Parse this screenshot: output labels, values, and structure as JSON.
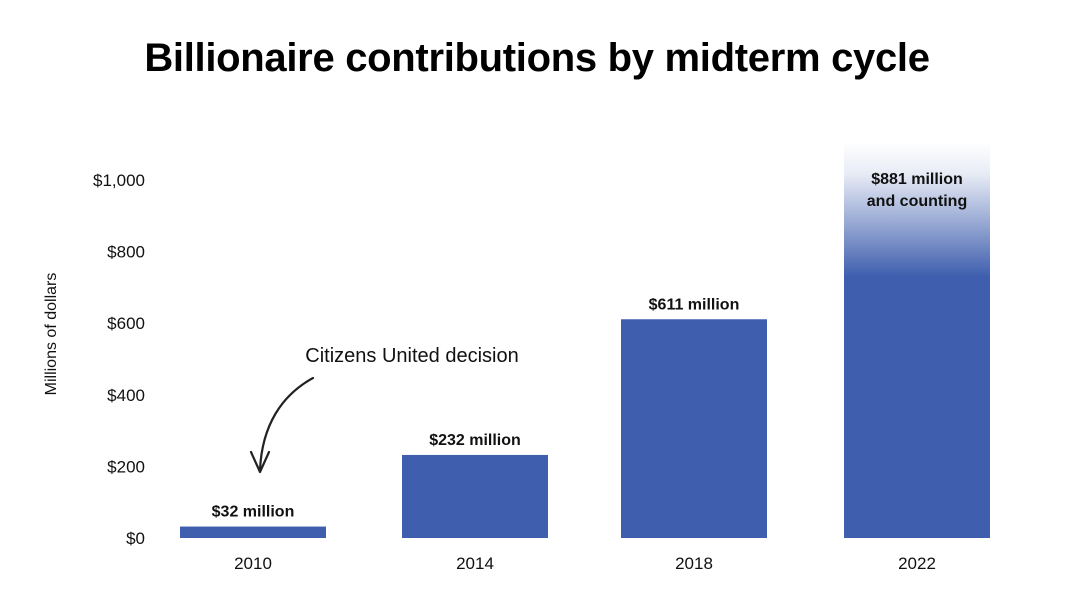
{
  "chart_data": {
    "type": "bar",
    "title": "Billionaire contributions by midterm cycle",
    "xlabel": "",
    "ylabel": "Millions of dollars",
    "categories": [
      "2010",
      "2014",
      "2018",
      "2022"
    ],
    "values": [
      32,
      232,
      611,
      881
    ],
    "data_labels": [
      "$32 million",
      "$232 million",
      "$611 million",
      "$881 million\nand counting"
    ],
    "yticks": [
      0,
      200,
      400,
      600,
      800,
      1000
    ],
    "ytick_labels": [
      "$0",
      "$200",
      "$400",
      "$600",
      "$800",
      "$1,000"
    ],
    "ylim": [
      0,
      1000
    ],
    "grid": false,
    "annotations": [
      {
        "text": "Citizens United decision",
        "points_to": "2010"
      }
    ],
    "last_bar_fade": true
  },
  "colors": {
    "bar": "#3f5fae",
    "text": "#111111"
  }
}
